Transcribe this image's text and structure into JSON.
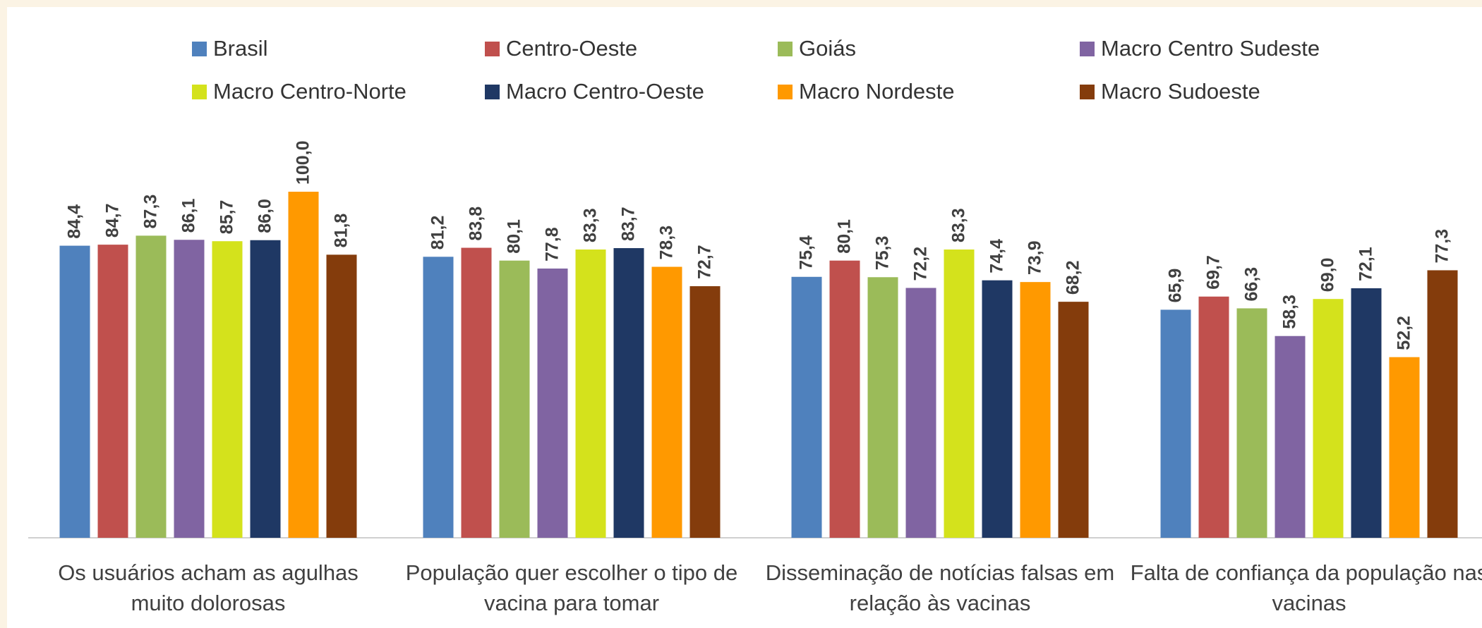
{
  "chart_data": {
    "type": "bar",
    "categories": [
      "Os usuários acham as agulhas muito dolorosas",
      "População quer escolher o tipo de vacina para tomar",
      "Disseminação de notícias falsas em relação às vacinas",
      "Falta de confiança da população nas vacinas"
    ],
    "ylim": [
      0,
      100
    ],
    "series": [
      {
        "name": "Brasil",
        "color": "#4f81bd",
        "values": [
          84.4,
          81.2,
          75.4,
          65.9
        ],
        "value_labels": [
          "84,4",
          "81,2",
          "75,4",
          "65,9"
        ]
      },
      {
        "name": "Centro-Oeste",
        "color": "#c0504d",
        "values": [
          84.7,
          83.8,
          80.1,
          69.7
        ],
        "value_labels": [
          "84,7",
          "83,8",
          "80,1",
          "69,7"
        ]
      },
      {
        "name": "Goiás",
        "color": "#9bbb59",
        "values": [
          87.3,
          80.1,
          75.3,
          66.3
        ],
        "value_labels": [
          "87,3",
          "80,1",
          "75,3",
          "66,3"
        ]
      },
      {
        "name": "Macro Centro Sudeste",
        "color": "#8064a2",
        "values": [
          86.1,
          77.8,
          72.2,
          58.3
        ],
        "value_labels": [
          "86,1",
          "77,8",
          "72,2",
          "58,3"
        ]
      },
      {
        "name": "Macro Centro-Norte",
        "color": "#d4e21c",
        "values": [
          85.7,
          83.3,
          83.3,
          69.0
        ],
        "value_labels": [
          "85,7",
          "83,3",
          "83,3",
          "69,0"
        ]
      },
      {
        "name": "Macro Centro-Oeste",
        "color": "#1f3864",
        "values": [
          86.0,
          83.7,
          74.4,
          72.1
        ],
        "value_labels": [
          "86,0",
          "83,7",
          "74,4",
          "72,1"
        ]
      },
      {
        "name": "Macro Nordeste",
        "color": "#ff9900",
        "values": [
          100.0,
          78.3,
          73.9,
          52.2
        ],
        "value_labels": [
          "100,0",
          "78,3",
          "73,9",
          "52,2"
        ]
      },
      {
        "name": "Macro Sudoeste",
        "color": "#843c0c",
        "values": [
          81.8,
          72.7,
          68.2,
          77.3
        ],
        "value_labels": [
          "81,8",
          "72,7",
          "68,2",
          "77,3"
        ]
      }
    ]
  }
}
